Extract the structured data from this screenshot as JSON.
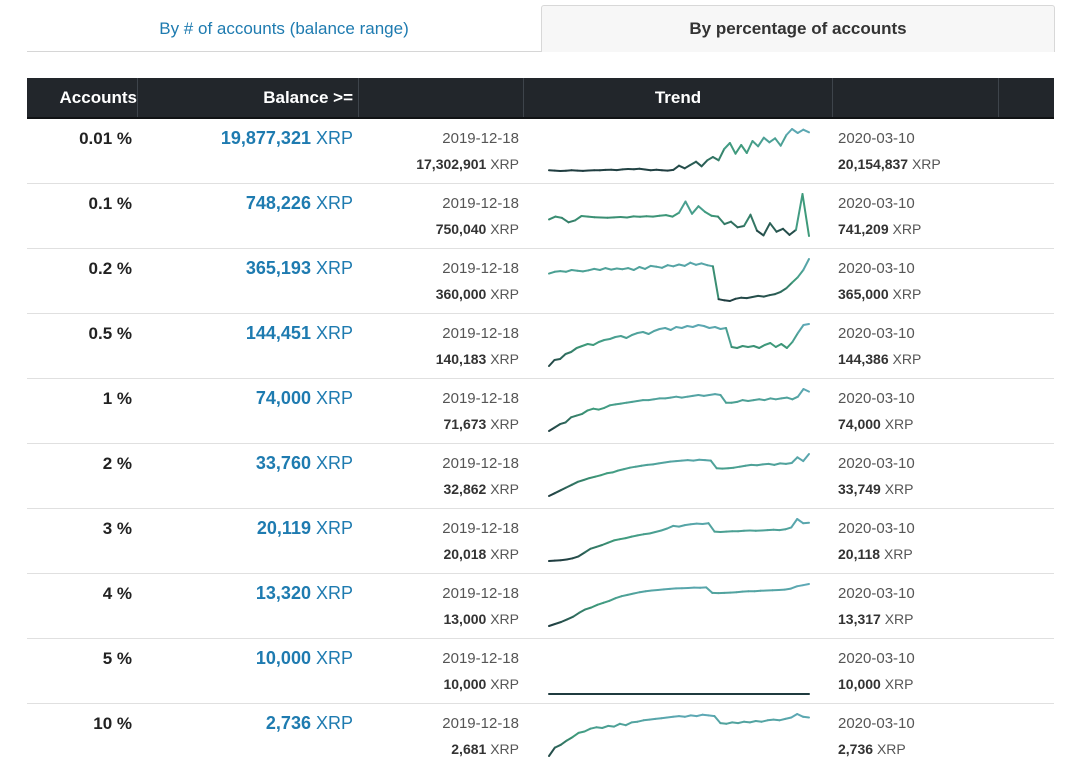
{
  "tabs": [
    {
      "label": "By # of accounts (balance range)",
      "active": false
    },
    {
      "label": "By percentage of accounts",
      "active": true
    }
  ],
  "table": {
    "headers": {
      "accounts": "Accounts",
      "balance": "Balance >=",
      "trend": "Trend"
    },
    "start_date": "2019-12-18",
    "end_date": "2020-03-10",
    "unit": "XRP",
    "rows": [
      {
        "pct": "0.01 %",
        "balance": "19,877,321",
        "start_value": "17,302,901",
        "end_value": "20,154,837",
        "trend": [
          17.3,
          17.28,
          17.25,
          17.27,
          17.3,
          17.28,
          17.26,
          17.29,
          17.31,
          17.3,
          17.33,
          17.35,
          17.32,
          17.37,
          17.4,
          17.38,
          17.42,
          17.36,
          17.31,
          17.34,
          17.3,
          17.28,
          17.33,
          17.65,
          17.45,
          17.7,
          17.95,
          17.6,
          18.05,
          18.3,
          18.05,
          18.9,
          19.35,
          18.55,
          19.2,
          18.6,
          19.5,
          19.1,
          19.75,
          19.4,
          19.7,
          19.15,
          19.95,
          20.4,
          20.1,
          20.35,
          20.15
        ]
      },
      {
        "pct": "0.1 %",
        "balance": "748,226",
        "start_value": "750,040",
        "end_value": "741,209",
        "trend": [
          750.0,
          751.5,
          750.8,
          748.5,
          749.5,
          751.8,
          751.5,
          751.2,
          751.0,
          750.9,
          751.1,
          751.3,
          751.0,
          751.6,
          751.4,
          751.7,
          751.5,
          751.9,
          752.3,
          751.5,
          753.5,
          759.5,
          753.0,
          757.0,
          754.0,
          752.0,
          751.5,
          747.5,
          748.8,
          745.8,
          746.5,
          752.5,
          744.0,
          741.5,
          748.0,
          743.5,
          745.0,
          741.8,
          744.5,
          763.5,
          741.2
        ]
      },
      {
        "pct": "0.2 %",
        "balance": "365,193",
        "start_value": "360,000",
        "end_value": "365,000",
        "trend": [
          360.5,
          361.0,
          361.2,
          361.0,
          361.5,
          361.3,
          361.1,
          361.4,
          361.8,
          361.5,
          362.0,
          361.6,
          361.9,
          361.7,
          362.0,
          361.5,
          362.3,
          361.8,
          362.6,
          362.4,
          362.1,
          362.8,
          362.5,
          363.0,
          362.6,
          363.5,
          362.9,
          363.3,
          362.8,
          362.5,
          353.5,
          353.2,
          353.0,
          353.6,
          353.9,
          353.8,
          354.1,
          354.4,
          354.2,
          354.6,
          354.9,
          355.5,
          356.5,
          358.0,
          359.5,
          361.5,
          364.5
        ]
      },
      {
        "pct": "0.5 %",
        "balance": "144,451",
        "start_value": "140,183",
        "end_value": "144,386",
        "trend": [
          140.2,
          140.8,
          140.9,
          141.4,
          141.6,
          142.0,
          142.2,
          142.4,
          142.3,
          142.6,
          142.8,
          142.9,
          143.1,
          143.2,
          143.0,
          143.3,
          143.5,
          143.6,
          143.4,
          143.7,
          143.9,
          144.0,
          143.8,
          144.1,
          144.0,
          144.2,
          144.1,
          144.3,
          144.2,
          144.0,
          144.1,
          143.9,
          144.0,
          142.1,
          142.0,
          142.2,
          142.1,
          142.2,
          142.0,
          142.3,
          142.5,
          142.1,
          142.4,
          142.0,
          142.6,
          143.5,
          144.3,
          144.4
        ]
      },
      {
        "pct": "1 %",
        "balance": "74,000",
        "start_value": "71,673",
        "end_value": "74,000",
        "trend": [
          71.7,
          71.9,
          72.1,
          72.2,
          72.5,
          72.6,
          72.7,
          72.9,
          73.0,
          72.95,
          73.05,
          73.2,
          73.25,
          73.3,
          73.35,
          73.4,
          73.45,
          73.5,
          73.5,
          73.55,
          73.6,
          73.6,
          73.65,
          73.7,
          73.65,
          73.7,
          73.75,
          73.8,
          73.75,
          73.8,
          73.85,
          73.8,
          73.35,
          73.35,
          73.4,
          73.5,
          73.45,
          73.5,
          73.55,
          73.5,
          73.6,
          73.55,
          73.6,
          73.65,
          73.55,
          73.7,
          74.15,
          74.0
        ]
      },
      {
        "pct": "2 %",
        "balance": "33,760",
        "start_value": "32,862",
        "end_value": "33,749",
        "trend": [
          32.86,
          32.92,
          32.98,
          33.04,
          33.1,
          33.16,
          33.2,
          33.24,
          33.27,
          33.3,
          33.34,
          33.36,
          33.4,
          33.43,
          33.46,
          33.48,
          33.5,
          33.52,
          33.53,
          33.55,
          33.57,
          33.59,
          33.6,
          33.61,
          33.62,
          33.61,
          33.63,
          33.62,
          33.61,
          33.45,
          33.44,
          33.45,
          33.46,
          33.48,
          33.5,
          33.52,
          33.51,
          33.53,
          33.54,
          33.52,
          33.55,
          33.54,
          33.56,
          33.68,
          33.6,
          33.75
        ]
      },
      {
        "pct": "3 %",
        "balance": "20,119",
        "start_value": "20,018",
        "end_value": "20,118",
        "trend": [
          20.018,
          20.019,
          20.02,
          20.022,
          20.025,
          20.03,
          20.04,
          20.05,
          20.055,
          20.06,
          20.066,
          20.072,
          20.075,
          20.078,
          20.082,
          20.085,
          20.088,
          20.09,
          20.094,
          20.098,
          20.103,
          20.11,
          20.108,
          20.112,
          20.114,
          20.116,
          20.115,
          20.117,
          20.095,
          20.094,
          20.095,
          20.096,
          20.096,
          20.097,
          20.098,
          20.097,
          20.098,
          20.099,
          20.1,
          20.099,
          20.101,
          20.106,
          20.128,
          20.117,
          20.118
        ]
      },
      {
        "pct": "4 %",
        "balance": "13,320",
        "start_value": "13,000",
        "end_value": "13,317",
        "trend": [
          13.0,
          13.015,
          13.03,
          13.05,
          13.07,
          13.1,
          13.125,
          13.14,
          13.16,
          13.175,
          13.19,
          13.21,
          13.225,
          13.235,
          13.245,
          13.255,
          13.262,
          13.268,
          13.272,
          13.276,
          13.28,
          13.284,
          13.285,
          13.287,
          13.29,
          13.288,
          13.291,
          13.25,
          13.248,
          13.25,
          13.252,
          13.255,
          13.26,
          13.262,
          13.263,
          13.266,
          13.268,
          13.27,
          13.272,
          13.275,
          13.282,
          13.3,
          13.308,
          13.317
        ]
      },
      {
        "pct": "5 %",
        "balance": "10,000",
        "start_value": "10,000",
        "end_value": "10,000",
        "trend": [
          10000,
          10000
        ]
      },
      {
        "pct": "10 %",
        "balance": "2,736",
        "start_value": "2,681",
        "end_value": "2,736",
        "trend": [
          2681,
          2693,
          2697,
          2703,
          2708,
          2714,
          2716,
          2720,
          2722,
          2721,
          2724,
          2723,
          2727,
          2725,
          2729,
          2730,
          2732,
          2733,
          2734,
          2735,
          2736,
          2737,
          2738,
          2737,
          2739,
          2738,
          2740,
          2739,
          2738,
          2728,
          2727,
          2729,
          2728,
          2730,
          2729,
          2731,
          2730,
          2732,
          2733,
          2732,
          2734,
          2736,
          2741,
          2737,
          2736
        ]
      }
    ]
  },
  "colors": {
    "accent": "#1e7bb0",
    "header_bg": "#22262b",
    "trend_low": "#1f3b3f",
    "trend_mid": "#3e9a7a",
    "trend_high": "#5fa9b8"
  }
}
